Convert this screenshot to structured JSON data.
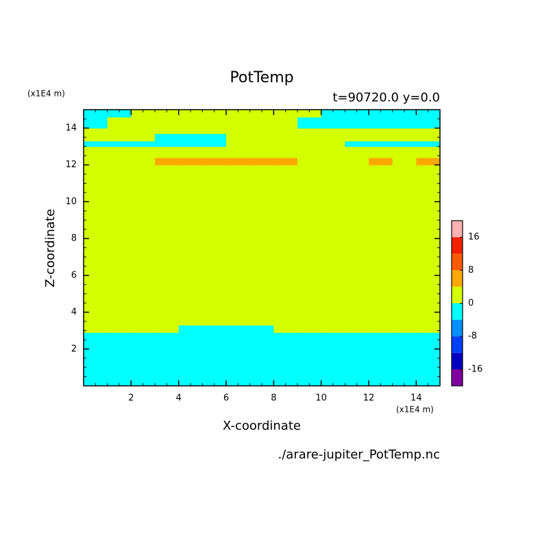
{
  "chart_data": {
    "type": "contour",
    "title": "PotTemp",
    "subtitle": "t=90720.0 y=0.0",
    "x_label": "X-coordinate",
    "y_label": "Z-coordinate",
    "x_unit": "(x1E4 m)",
    "y_unit": "(x1E4 m)",
    "source": "./arare-jupiter_PotTemp.nc",
    "xlim": [
      0,
      15
    ],
    "ylim": [
      0,
      15
    ],
    "xticks": [
      2,
      4,
      6,
      8,
      10,
      12,
      14
    ],
    "yticks": [
      2,
      4,
      6,
      8,
      10,
      12,
      14
    ],
    "xbins": [
      0,
      1,
      2,
      3,
      4,
      5,
      6,
      7,
      8,
      9,
      10,
      11,
      12,
      13,
      14,
      15
    ],
    "ybins": [
      0,
      2.9,
      3.3,
      12.0,
      12.4,
      13.0,
      13.3,
      13.7,
      14.0,
      14.6,
      15
    ],
    "values": [
      [
        -2,
        -2,
        -2,
        -2,
        -2,
        -2,
        -2,
        -2,
        -2,
        -2,
        -2,
        -2,
        -2,
        -2,
        -2
      ],
      [
        2,
        2,
        2,
        2,
        -2,
        -2,
        -2,
        -2,
        2,
        2,
        2,
        2,
        2,
        2,
        2
      ],
      [
        2,
        2,
        2,
        2,
        2,
        2,
        2,
        2,
        2,
        2,
        2,
        2,
        2,
        2,
        2
      ],
      [
        2,
        2,
        2,
        5,
        5,
        5,
        5,
        5,
        5,
        2,
        2,
        2,
        5,
        2,
        5
      ],
      [
        2,
        2,
        2,
        2,
        2,
        2,
        2,
        2,
        2,
        2,
        2,
        2,
        2,
        2,
        2
      ],
      [
        -2,
        -2,
        -2,
        -2,
        -2,
        -2,
        2,
        2,
        2,
        2,
        2,
        -2,
        -2,
        -2,
        -2
      ],
      [
        2,
        2,
        2,
        -2,
        -2,
        -2,
        2,
        2,
        2,
        2,
        2,
        2,
        2,
        2,
        2
      ],
      [
        2,
        2,
        2,
        2,
        2,
        2,
        2,
        2,
        2,
        2,
        2,
        2,
        2,
        2,
        2
      ],
      [
        -2,
        2,
        2,
        2,
        2,
        2,
        2,
        2,
        2,
        -2,
        -2,
        -2,
        -2,
        -2,
        -2
      ],
      [
        -2,
        -2,
        2,
        2,
        2,
        2,
        2,
        2,
        2,
        2,
        -2,
        -2,
        -2,
        -2,
        -2
      ]
    ],
    "levels": [
      -20,
      -16,
      -12,
      -8,
      -4,
      0,
      4,
      8,
      12,
      16,
      20
    ],
    "colors": [
      "#8000a0",
      "#0000c0",
      "#0040ff",
      "#0090ff",
      "#00ffff",
      "#d4ff00",
      "#ffa800",
      "#ff5a00",
      "#f02000",
      "#ffb0b0"
    ],
    "colorbar_ticks": [
      -16,
      -8,
      0,
      8,
      16
    ]
  }
}
